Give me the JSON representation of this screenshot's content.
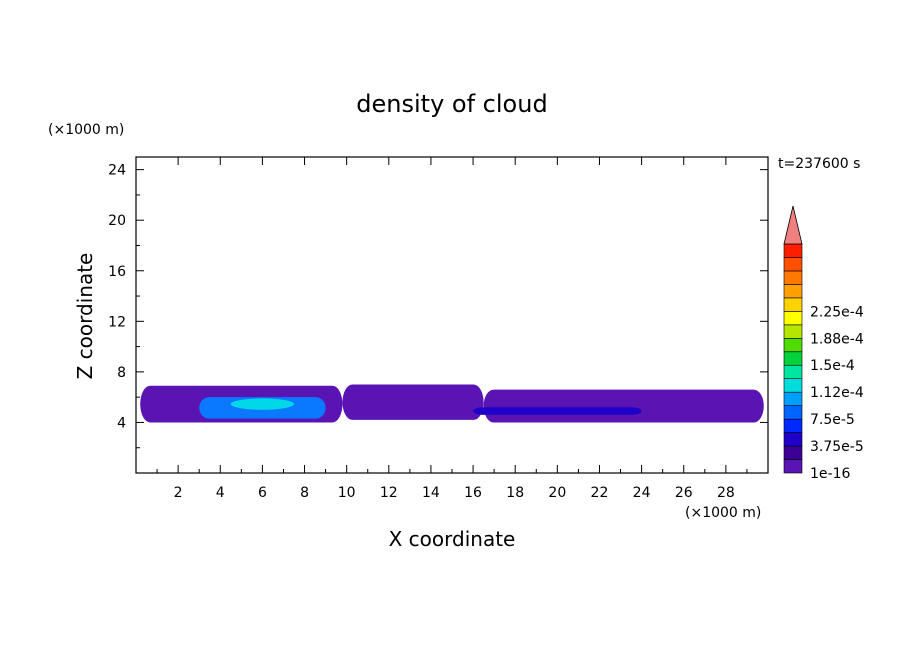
{
  "chart_data": {
    "type": "heatmap",
    "title": "density of cloud",
    "xlabel": "X coordinate",
    "ylabel": "Z coordinate",
    "x_unit": "(×1000 m)",
    "y_unit": "(×1000 m)",
    "time_label": "t=237600 s",
    "xlim": [
      0,
      30
    ],
    "ylim": [
      0,
      25
    ],
    "x_ticks": [
      2,
      4,
      6,
      8,
      10,
      12,
      14,
      16,
      18,
      20,
      22,
      24,
      26,
      28
    ],
    "y_ticks": [
      4,
      8,
      12,
      16,
      20,
      24
    ],
    "colorbar": {
      "labels": [
        "1e-16",
        "3.75e-5",
        "7.5e-5",
        "1.12e-4",
        "1.5e-4",
        "1.88e-4",
        "2.25e-4"
      ],
      "colors": [
        "#5a14b4",
        "#3c0096",
        "#1e00c8",
        "#0028ff",
        "#0064ff",
        "#00a0ff",
        "#00dcdc",
        "#00e6a0",
        "#00d23c",
        "#50dc00",
        "#b4e600",
        "#ffff00",
        "#ffd200",
        "#ffa000",
        "#ff7800",
        "#ff5000",
        "#ff1e00",
        "#f08080"
      ],
      "extend": "max"
    },
    "regions": [
      {
        "name": "cloud layer west",
        "x": [
          0.2,
          9.8
        ],
        "z": [
          4.0,
          6.9
        ],
        "level": "1e-16"
      },
      {
        "name": "cloud layer centre",
        "x": [
          9.8,
          16.5
        ],
        "z": [
          4.2,
          7.0
        ],
        "level": "1e-16"
      },
      {
        "name": "cloud layer east",
        "x": [
          16.5,
          29.8
        ],
        "z": [
          4.0,
          6.6
        ],
        "level": "1e-16"
      },
      {
        "name": "dense core",
        "x": [
          3.0,
          9.0
        ],
        "z": [
          4.3,
          6.0
        ],
        "level": "7.5e-5"
      },
      {
        "name": "peak core",
        "x": [
          4.5,
          7.5
        ],
        "z": [
          5.0,
          5.9
        ],
        "level": "1.12e-4"
      },
      {
        "name": "secondary band",
        "x": [
          16.0,
          24.0
        ],
        "z": [
          4.6,
          5.2
        ],
        "level": "3.75e-5"
      }
    ]
  }
}
